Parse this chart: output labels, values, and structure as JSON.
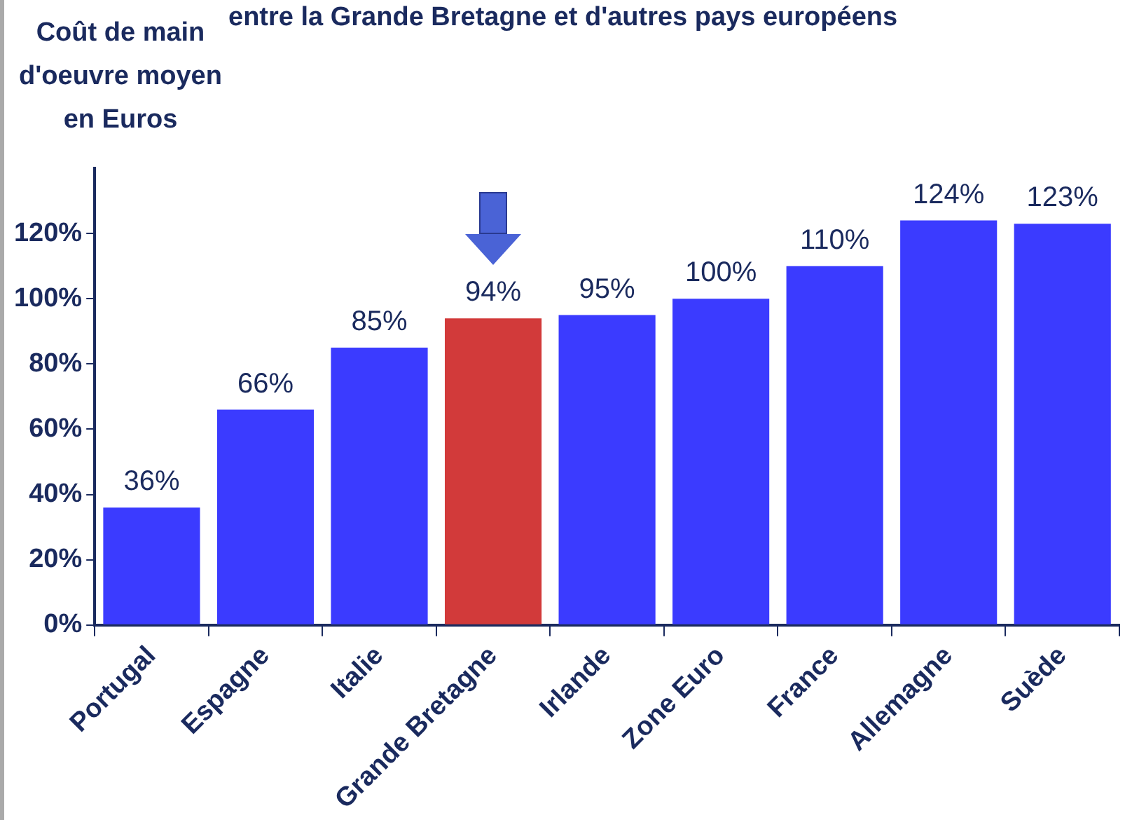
{
  "chart_data": {
    "type": "bar",
    "title": "entre la Grande Bretagne et d'autres pays européens",
    "ylabel": "Coût de main d'oeuvre moyen en Euros",
    "categories": [
      "Portugal",
      "Espagne",
      "Italie",
      "Grande Bretagne",
      "Irlande",
      "Zone Euro",
      "France",
      "Allemagne",
      "Suède"
    ],
    "values": [
      36,
      66,
      85,
      94,
      95,
      100,
      110,
      124,
      123
    ],
    "value_labels": [
      "36%",
      "66%",
      "85%",
      "94%",
      "95%",
      "100%",
      "110%",
      "124%",
      "123%"
    ],
    "colors": [
      "#3b3bff",
      "#3b3bff",
      "#3b3bff",
      "#d23a3a",
      "#3b3bff",
      "#3b3bff",
      "#3b3bff",
      "#3b3bff",
      "#3b3bff"
    ],
    "ylim": [
      0,
      140
    ],
    "yticks": [
      {
        "value": 0,
        "label": "0%"
      },
      {
        "value": 20,
        "label": "20%"
      },
      {
        "value": 40,
        "label": "40%"
      },
      {
        "value": 60,
        "label": "60%"
      },
      {
        "value": 80,
        "label": "80%"
      },
      {
        "value": 100,
        "label": "100%"
      },
      {
        "value": 120,
        "label": "120%"
      }
    ],
    "grid": false,
    "legend": false
  }
}
